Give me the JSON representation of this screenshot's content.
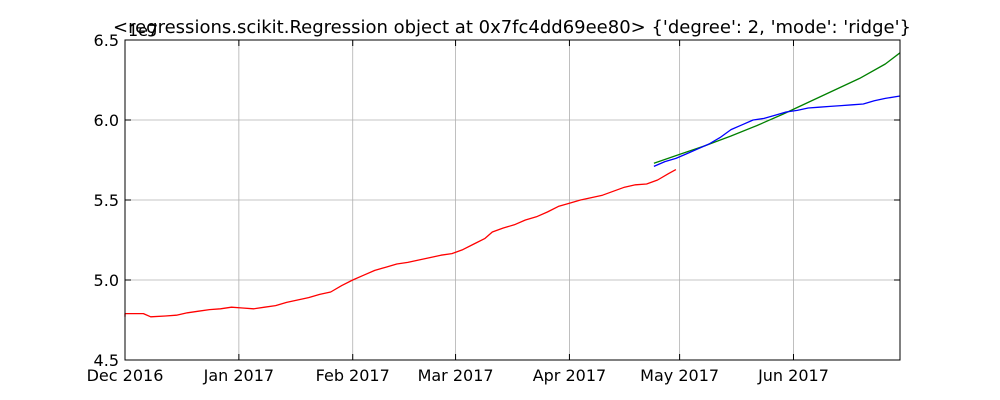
{
  "chart_data": {
    "type": "line",
    "title": "<regressions.scikit.Regression object at 0x7fc4dd69ee80> {'degree': 2, 'mode': 'ridge'}",
    "y_offset_label": "1e7",
    "xlabel": "",
    "ylabel": "",
    "xlim": [
      "2016-12-01",
      "2017-06-30"
    ],
    "ylim": [
      4.5,
      6.5
    ],
    "grid": true,
    "x_ticks": [
      {
        "date": "2016-12-01",
        "label": "Dec 2016"
      },
      {
        "date": "2017-01-01",
        "label": "Jan 2017"
      },
      {
        "date": "2017-02-01",
        "label": "Feb 2017"
      },
      {
        "date": "2017-03-01",
        "label": "Mar 2017"
      },
      {
        "date": "2017-04-01",
        "label": "Apr 2017"
      },
      {
        "date": "2017-05-01",
        "label": "May 2017"
      },
      {
        "date": "2017-06-01",
        "label": "Jun 2017"
      }
    ],
    "y_ticks": [
      {
        "value": 4.5,
        "label": "4.5"
      },
      {
        "value": 5.0,
        "label": "5.0"
      },
      {
        "value": 5.5,
        "label": "5.5"
      },
      {
        "value": 6.0,
        "label": "6.0"
      },
      {
        "value": 6.5,
        "label": "6.5"
      }
    ],
    "series": [
      {
        "color": "#ff0000",
        "points": [
          [
            "2016-11-28",
            4.77
          ],
          [
            "2016-11-30",
            4.79
          ],
          [
            "2016-12-03",
            4.79
          ],
          [
            "2016-12-06",
            4.79
          ],
          [
            "2016-12-08",
            4.77
          ],
          [
            "2016-12-12",
            4.775
          ],
          [
            "2016-12-15",
            4.78
          ],
          [
            "2016-12-18",
            4.795
          ],
          [
            "2016-12-21",
            4.805
          ],
          [
            "2016-12-24",
            4.815
          ],
          [
            "2016-12-27",
            4.82
          ],
          [
            "2016-12-30",
            4.83
          ],
          [
            "2017-01-02",
            4.825
          ],
          [
            "2017-01-05",
            4.82
          ],
          [
            "2017-01-08",
            4.83
          ],
          [
            "2017-01-11",
            4.84
          ],
          [
            "2017-01-14",
            4.86
          ],
          [
            "2017-01-17",
            4.875
          ],
          [
            "2017-01-20",
            4.89
          ],
          [
            "2017-01-23",
            4.91
          ],
          [
            "2017-01-26",
            4.925
          ],
          [
            "2017-01-29",
            4.965
          ],
          [
            "2017-02-01",
            5.0
          ],
          [
            "2017-02-04",
            5.03
          ],
          [
            "2017-02-07",
            5.06
          ],
          [
            "2017-02-10",
            5.08
          ],
          [
            "2017-02-13",
            5.1
          ],
          [
            "2017-02-16",
            5.11
          ],
          [
            "2017-02-19",
            5.125
          ],
          [
            "2017-02-22",
            5.14
          ],
          [
            "2017-02-25",
            5.155
          ],
          [
            "2017-02-28",
            5.165
          ],
          [
            "2017-03-03",
            5.19
          ],
          [
            "2017-03-06",
            5.225
          ],
          [
            "2017-03-09",
            5.26
          ],
          [
            "2017-03-11",
            5.3
          ],
          [
            "2017-03-14",
            5.325
          ],
          [
            "2017-03-17",
            5.345
          ],
          [
            "2017-03-20",
            5.375
          ],
          [
            "2017-03-23",
            5.395
          ],
          [
            "2017-03-26",
            5.425
          ],
          [
            "2017-03-29",
            5.46
          ],
          [
            "2017-04-01",
            5.48
          ],
          [
            "2017-04-04",
            5.5
          ],
          [
            "2017-04-07",
            5.515
          ],
          [
            "2017-04-10",
            5.53
          ],
          [
            "2017-04-13",
            5.555
          ],
          [
            "2017-04-16",
            5.58
          ],
          [
            "2017-04-19",
            5.595
          ],
          [
            "2017-04-22",
            5.6
          ],
          [
            "2017-04-25",
            5.625
          ],
          [
            "2017-04-28",
            5.665
          ],
          [
            "2017-04-30",
            5.69
          ]
        ]
      },
      {
        "color": "#008000",
        "points": [
          [
            "2017-04-24",
            5.73
          ],
          [
            "2017-05-01",
            5.785
          ],
          [
            "2017-05-08",
            5.84
          ],
          [
            "2017-05-15",
            5.9
          ],
          [
            "2017-05-22",
            5.965
          ],
          [
            "2017-05-29",
            6.035
          ],
          [
            "2017-06-05",
            6.11
          ],
          [
            "2017-06-12",
            6.185
          ],
          [
            "2017-06-19",
            6.26
          ],
          [
            "2017-06-26",
            6.35
          ],
          [
            "2017-06-30",
            6.42
          ]
        ]
      },
      {
        "color": "#0000ff",
        "points": [
          [
            "2017-04-24",
            5.71
          ],
          [
            "2017-04-27",
            5.74
          ],
          [
            "2017-04-30",
            5.76
          ],
          [
            "2017-05-03",
            5.79
          ],
          [
            "2017-05-06",
            5.82
          ],
          [
            "2017-05-09",
            5.85
          ],
          [
            "2017-05-12",
            5.89
          ],
          [
            "2017-05-15",
            5.94
          ],
          [
            "2017-05-18",
            5.97
          ],
          [
            "2017-05-21",
            6.0
          ],
          [
            "2017-05-24",
            6.01
          ],
          [
            "2017-05-27",
            6.03
          ],
          [
            "2017-05-30",
            6.05
          ],
          [
            "2017-06-02",
            6.06
          ],
          [
            "2017-06-05",
            6.075
          ],
          [
            "2017-06-08",
            6.08
          ],
          [
            "2017-06-11",
            6.085
          ],
          [
            "2017-06-14",
            6.09
          ],
          [
            "2017-06-17",
            6.095
          ],
          [
            "2017-06-20",
            6.1
          ],
          [
            "2017-06-23",
            6.12
          ],
          [
            "2017-06-26",
            6.135
          ],
          [
            "2017-06-30",
            6.15
          ]
        ]
      }
    ]
  }
}
